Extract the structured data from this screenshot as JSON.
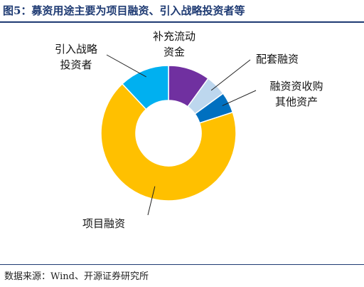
{
  "header": {
    "title": "图5：募资用途主要为项目融资、引入战略投资者等"
  },
  "footer": {
    "source": "数据来源：Wind、开源证券研究所"
  },
  "chart_data": {
    "type": "pie",
    "donut": true,
    "legend": "none",
    "categories": [
      "补充流动资金",
      "配套融资",
      "融资收购其他资产",
      "项目融资",
      "引入战略投资者"
    ],
    "labels": [
      {
        "line1": "补充流动",
        "line2": "资金"
      },
      {
        "line1": "配套融资",
        "line2": ""
      },
      {
        "line1": "融资资收购",
        "line2": "其他资产"
      },
      {
        "line1": "项目融资",
        "line2": ""
      },
      {
        "line1": "引入战略",
        "line2": "投资者"
      }
    ],
    "values": [
      10,
      5,
      5,
      68,
      12
    ],
    "colors": [
      "#7030a0",
      "#bdd7ee",
      "#0070c0",
      "#ffc000",
      "#00b0f0"
    ]
  }
}
